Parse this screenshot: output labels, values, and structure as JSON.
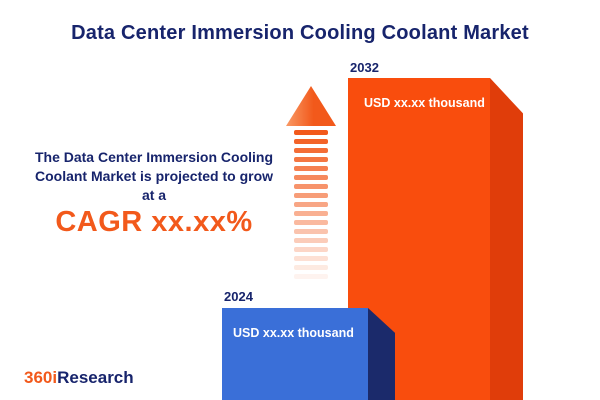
{
  "title": "Data Center Immersion Cooling Coolant Market",
  "description": {
    "line1": "The Data Center Immersion Cooling",
    "line2": "Coolant Market is projected to grow",
    "line3": "at a",
    "cagr": "CAGR xx.xx%"
  },
  "chart_data": {
    "type": "bar",
    "title": "Data Center Immersion Cooling Coolant Market",
    "categories": [
      "2024",
      "2032"
    ],
    "values": [
      "xx.xx",
      "xx.xx"
    ],
    "unit": "USD thousand",
    "bar_labels": [
      "USD xx.xx thousand",
      "USD xx.xx thousand"
    ],
    "annotations": [
      "CAGR xx.xx%"
    ],
    "legend": "none",
    "grid": "off"
  },
  "logo": {
    "part1": "360i",
    "part2": "Research"
  },
  "colors": {
    "navy": "#17246c",
    "orange": "#f2591b",
    "barBlue": "#3a6fd8",
    "barBlueSide": "#1b2a6b",
    "barOrange": "#f94d0d",
    "barOrangeSide": "#e03d0a"
  }
}
